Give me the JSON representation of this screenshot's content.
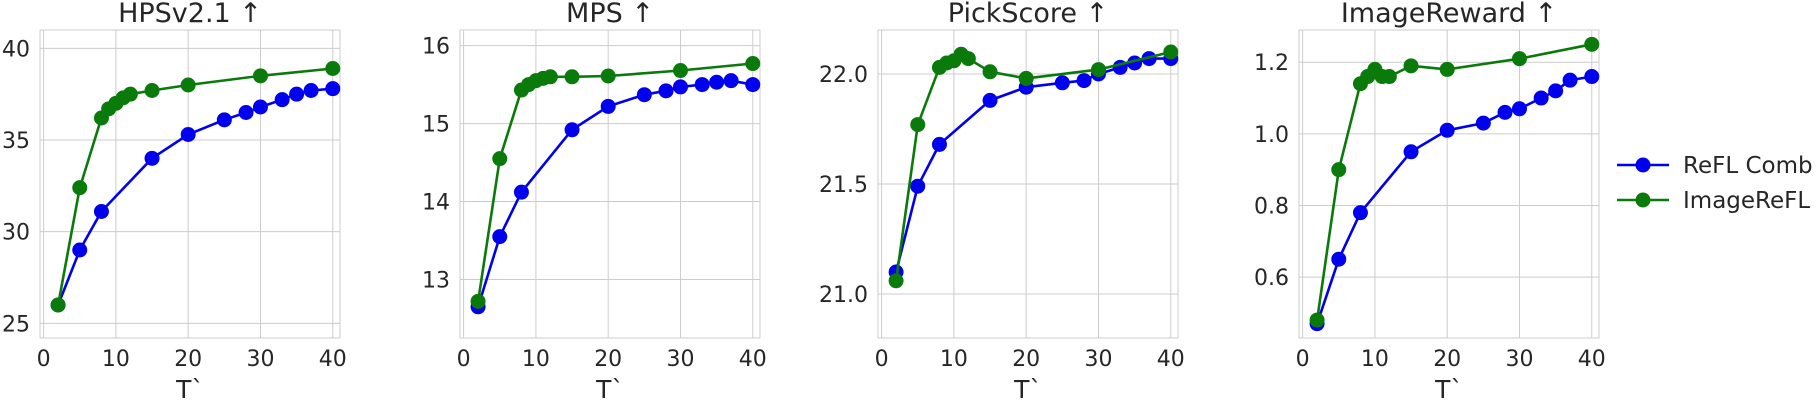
{
  "chart_data": [
    {
      "type": "line",
      "title": "HPSv2.1 ↑",
      "xlabel": "T`",
      "ylabel": "",
      "xlim": [
        -0.5,
        41
      ],
      "ylim": [
        24.2,
        41
      ],
      "xticks": [
        0,
        10,
        20,
        30,
        40
      ],
      "yticks": [
        25,
        30,
        35,
        40
      ],
      "grid": true,
      "series": [
        {
          "name": "ReFL Comb",
          "color": "#0000ee",
          "x": [
            2,
            5,
            8,
            15,
            20,
            25,
            28,
            30,
            33,
            35,
            37,
            40
          ],
          "y": [
            26.0,
            29.0,
            31.1,
            34.0,
            35.3,
            36.1,
            36.5,
            36.8,
            37.2,
            37.5,
            37.7,
            37.8
          ]
        },
        {
          "name": "ImageReFL",
          "color": "#0a7a0a",
          "x": [
            2,
            5,
            8,
            9,
            10,
            11,
            12,
            15,
            20,
            30,
            40
          ],
          "y": [
            26.0,
            32.4,
            36.2,
            36.7,
            37.0,
            37.3,
            37.5,
            37.7,
            38.0,
            38.5,
            38.9
          ]
        }
      ]
    },
    {
      "type": "line",
      "title": "MPS ↑",
      "xlabel": "T`",
      "ylabel": "",
      "xlim": [
        -0.5,
        41
      ],
      "ylim": [
        12.25,
        16.2
      ],
      "xticks": [
        0,
        10,
        20,
        30,
        40
      ],
      "yticks": [
        13,
        14,
        15,
        16
      ],
      "grid": true,
      "series": [
        {
          "name": "ReFL Comb",
          "color": "#0000ee",
          "x": [
            2,
            5,
            8,
            15,
            20,
            25,
            28,
            30,
            33,
            35,
            37,
            40
          ],
          "y": [
            12.65,
            13.55,
            14.12,
            14.92,
            15.22,
            15.37,
            15.42,
            15.47,
            15.5,
            15.53,
            15.55,
            15.5
          ]
        },
        {
          "name": "ImageReFL",
          "color": "#0a7a0a",
          "x": [
            2,
            5,
            8,
            9,
            10,
            11,
            12,
            15,
            20,
            30,
            40
          ],
          "y": [
            12.72,
            14.55,
            15.43,
            15.5,
            15.55,
            15.58,
            15.6,
            15.6,
            15.61,
            15.68,
            15.77
          ]
        }
      ]
    },
    {
      "type": "line",
      "title": "PickScore ↑",
      "xlabel": "T`",
      "ylabel": "",
      "xlim": [
        -0.5,
        41
      ],
      "ylim": [
        20.8,
        22.2
      ],
      "xticks": [
        0,
        10,
        20,
        30,
        40
      ],
      "yticks": [
        21.0,
        21.5,
        22.0
      ],
      "grid": true,
      "series": [
        {
          "name": "ReFL Comb",
          "color": "#0000ee",
          "x": [
            2,
            5,
            8,
            15,
            20,
            25,
            28,
            30,
            33,
            35,
            37,
            40
          ],
          "y": [
            21.1,
            21.49,
            21.68,
            21.88,
            21.94,
            21.96,
            21.97,
            22.0,
            22.03,
            22.05,
            22.07,
            22.07
          ]
        },
        {
          "name": "ImageReFL",
          "color": "#0a7a0a",
          "x": [
            2,
            5,
            8,
            9,
            10,
            11,
            12,
            15,
            20,
            30,
            40
          ],
          "y": [
            21.06,
            21.77,
            22.03,
            22.05,
            22.06,
            22.09,
            22.07,
            22.01,
            21.98,
            22.02,
            22.1
          ]
        }
      ]
    },
    {
      "type": "line",
      "title": "ImageReward ↑",
      "xlabel": "T`",
      "ylabel": "",
      "xlim": [
        -0.5,
        41
      ],
      "ylim": [
        0.43,
        1.29
      ],
      "xticks": [
        0,
        10,
        20,
        30,
        40
      ],
      "yticks": [
        0.6,
        0.8,
        1.0,
        1.2
      ],
      "grid": true,
      "series": [
        {
          "name": "ReFL Comb",
          "color": "#0000ee",
          "x": [
            2,
            5,
            8,
            15,
            20,
            25,
            28,
            30,
            33,
            35,
            37,
            40
          ],
          "y": [
            0.47,
            0.65,
            0.78,
            0.95,
            1.01,
            1.03,
            1.06,
            1.07,
            1.1,
            1.12,
            1.15,
            1.16
          ]
        },
        {
          "name": "ImageReFL",
          "color": "#0a7a0a",
          "x": [
            2,
            5,
            8,
            9,
            10,
            11,
            12,
            15,
            20,
            30,
            40
          ],
          "y": [
            0.48,
            0.9,
            1.14,
            1.16,
            1.18,
            1.16,
            1.16,
            1.19,
            1.18,
            1.21,
            1.25
          ]
        }
      ]
    }
  ],
  "legend": {
    "placement": "right",
    "items": [
      {
        "label": "ReFL Comb",
        "color": "#0000ee"
      },
      {
        "label": "ImageReFL",
        "color": "#0a7a0a"
      }
    ]
  }
}
